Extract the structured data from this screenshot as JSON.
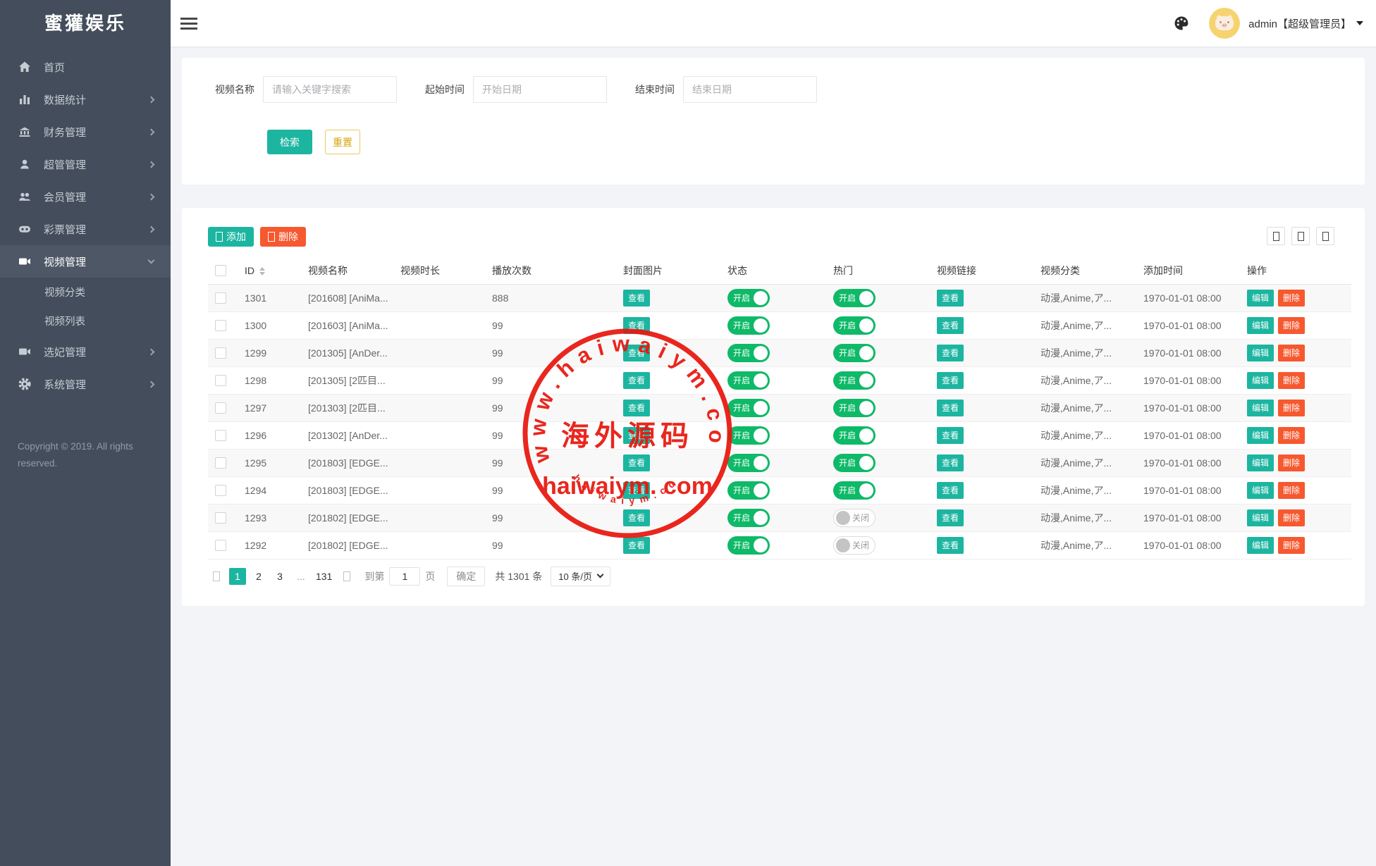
{
  "app": {
    "title": "蜜獾娱乐"
  },
  "sidebar": {
    "logo": "蜜獾娱乐",
    "items": [
      {
        "label": "首页",
        "icon": "home-icon",
        "expandable": false
      },
      {
        "label": "数据统计",
        "icon": "chart-icon",
        "expandable": true
      },
      {
        "label": "财务管理",
        "icon": "finance-icon",
        "expandable": true
      },
      {
        "label": "超管管理",
        "icon": "admin-user-icon",
        "expandable": true
      },
      {
        "label": "会员管理",
        "icon": "members-icon",
        "expandable": true
      },
      {
        "label": "彩票管理",
        "icon": "lottery-icon",
        "expandable": true
      },
      {
        "label": "视频管理",
        "icon": "video-icon",
        "expandable": true,
        "expanded": true,
        "active": true,
        "children": [
          {
            "label": "视频分类"
          },
          {
            "label": "视频列表"
          }
        ]
      },
      {
        "label": "选妃管理",
        "icon": "video-icon",
        "expandable": true
      },
      {
        "label": "系统管理",
        "icon": "gear-icon",
        "expandable": true
      }
    ],
    "copyright": "Copyright © 2019. All rights reserved."
  },
  "topbar": {
    "username": "admin【超级管理员】"
  },
  "search": {
    "name_label": "视频名称",
    "name_placeholder": "请输入关键字搜索",
    "start_label": "起始时间",
    "start_placeholder": "开始日期",
    "end_label": "结束时间",
    "end_placeholder": "结束日期",
    "search_button": "检索",
    "reset_button": "重置"
  },
  "toolbar": {
    "add_button": "添加",
    "delete_button": "删除"
  },
  "table": {
    "headers": [
      "ID",
      "视频名称",
      "视频时长",
      "播放次数",
      "封面图片",
      "状态",
      "热门",
      "视频链接",
      "视频分类",
      "添加时间",
      "操作"
    ],
    "labels": {
      "view": "查看",
      "on": "开启",
      "off": "关闭",
      "edit": "编辑",
      "delete": "删除"
    },
    "rows": [
      {
        "id": "1301",
        "name": "[201608] [AniMa...",
        "duration": "",
        "plays": "888",
        "status": "on",
        "hot": "on",
        "category": "动漫,Anime,ア...",
        "added": "1970-01-01 08:00"
      },
      {
        "id": "1300",
        "name": "[201603] [AniMa...",
        "duration": "",
        "plays": "99",
        "status": "on",
        "hot": "on",
        "category": "动漫,Anime,ア...",
        "added": "1970-01-01 08:00"
      },
      {
        "id": "1299",
        "name": "[201305] [AnDer...",
        "duration": "",
        "plays": "99",
        "status": "on",
        "hot": "on",
        "category": "动漫,Anime,ア...",
        "added": "1970-01-01 08:00"
      },
      {
        "id": "1298",
        "name": "[201305] [2匹目...",
        "duration": "",
        "plays": "99",
        "status": "on",
        "hot": "on",
        "category": "动漫,Anime,ア...",
        "added": "1970-01-01 08:00"
      },
      {
        "id": "1297",
        "name": "[201303] [2匹目...",
        "duration": "",
        "plays": "99",
        "status": "on",
        "hot": "on",
        "category": "动漫,Anime,ア...",
        "added": "1970-01-01 08:00"
      },
      {
        "id": "1296",
        "name": "[201302] [AnDer...",
        "duration": "",
        "plays": "99",
        "status": "on",
        "hot": "on",
        "category": "动漫,Anime,ア...",
        "added": "1970-01-01 08:00"
      },
      {
        "id": "1295",
        "name": "[201803] [EDGE...",
        "duration": "",
        "plays": "99",
        "status": "on",
        "hot": "on",
        "category": "动漫,Anime,ア...",
        "added": "1970-01-01 08:00"
      },
      {
        "id": "1294",
        "name": "[201803] [EDGE...",
        "duration": "",
        "plays": "99",
        "status": "on",
        "hot": "on",
        "category": "动漫,Anime,ア...",
        "added": "1970-01-01 08:00"
      },
      {
        "id": "1293",
        "name": "[201802] [EDGE...",
        "duration": "",
        "plays": "99",
        "status": "on",
        "hot": "off",
        "category": "动漫,Anime,ア...",
        "added": "1970-01-01 08:00"
      },
      {
        "id": "1292",
        "name": "[201802] [EDGE...",
        "duration": "",
        "plays": "99",
        "status": "on",
        "hot": "off",
        "category": "动漫,Anime,ア...",
        "added": "1970-01-01 08:00"
      }
    ]
  },
  "pagination": {
    "pages": [
      "1",
      "2",
      "3",
      "...",
      "131"
    ],
    "active_page": "1",
    "jump_label": "到第",
    "jump_value": "1",
    "page_unit": "页",
    "confirm_button": "确定",
    "total_text": "共 1301 条",
    "per_page": "10 条/页"
  },
  "watermark": {
    "arc_text": "www.haiwaiym.com",
    "center_text": "海外源码",
    "domain_text": "haiwaiym. com",
    "bottom_arc_text": "haiwaiym.com",
    "color": "#e8170d"
  },
  "colors": {
    "teal": "#1cb5a0",
    "orange": "#f6582f",
    "toggle_green": "#0eb968",
    "sidebar_bg": "#434d5b",
    "reset_yellow": "#d9a40e"
  }
}
